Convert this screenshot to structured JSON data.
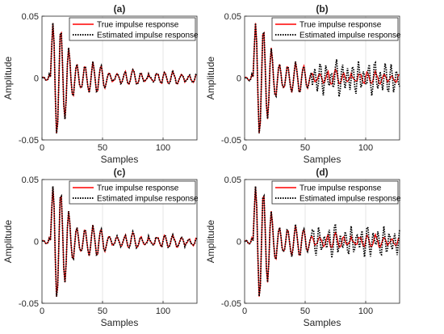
{
  "chart_data": [
    {
      "type": "line",
      "title": "(a)",
      "xlabel": "Samples",
      "ylabel": "Amplitude",
      "xlim": [
        0,
        128
      ],
      "ylim": [
        -0.05,
        0.05
      ],
      "xticks": [
        0,
        50,
        100
      ],
      "yticks": [
        -0.05,
        0,
        0.05
      ],
      "ytick_labels": [
        "-0.05",
        "0",
        "0.05"
      ],
      "grid": "x",
      "legend": "top-right",
      "mismatch": 0.02,
      "noise_seed": 1,
      "series": [
        {
          "name": "True impulse response",
          "color": "#ff0000",
          "style": "solid"
        },
        {
          "name": "Estimated impulse response",
          "color": "#000000",
          "style": "dotted"
        }
      ]
    },
    {
      "type": "line",
      "title": "(b)",
      "xlabel": "Samples",
      "ylabel": "Amplitude",
      "xlim": [
        0,
        128
      ],
      "ylim": [
        -0.05,
        0.05
      ],
      "xticks": [
        0,
        50,
        100
      ],
      "yticks": [
        -0.05,
        0,
        0.05
      ],
      "ytick_labels": [
        "-0.05",
        "0",
        "0.05"
      ],
      "grid": "x",
      "legend": "top-right",
      "mismatch": 0.35,
      "noise_seed": 2,
      "series": [
        {
          "name": "True impulse response",
          "color": "#ff0000",
          "style": "solid"
        },
        {
          "name": "Estimated impulse response",
          "color": "#000000",
          "style": "dotted"
        }
      ]
    },
    {
      "type": "line",
      "title": "(c)",
      "xlabel": "Samples",
      "ylabel": "Amplitude",
      "xlim": [
        0,
        128
      ],
      "ylim": [
        -0.05,
        0.05
      ],
      "xticks": [
        0,
        50,
        100
      ],
      "yticks": [
        -0.05,
        0,
        0.05
      ],
      "ytick_labels": [
        "-0.05",
        "0",
        "0.05"
      ],
      "grid": "x",
      "legend": "top-right",
      "mismatch": 0.03,
      "noise_seed": 3,
      "series": [
        {
          "name": "True impulse response",
          "color": "#ff0000",
          "style": "solid"
        },
        {
          "name": "Estimated impulse response",
          "color": "#000000",
          "style": "dotted"
        }
      ]
    },
    {
      "type": "line",
      "title": "(d)",
      "xlabel": "Samples",
      "ylabel": "Amplitude",
      "xlim": [
        0,
        128
      ],
      "ylim": [
        -0.05,
        0.05
      ],
      "xticks": [
        0,
        50,
        100
      ],
      "yticks": [
        -0.05,
        0,
        0.05
      ],
      "ytick_labels": [
        "-0.05",
        "0",
        "0.05"
      ],
      "grid": "x",
      "legend": "top-right",
      "mismatch": 0.3,
      "noise_seed": 4,
      "series": [
        {
          "name": "True impulse response",
          "color": "#ff0000",
          "style": "solid"
        },
        {
          "name": "Estimated impulse response",
          "color": "#000000",
          "style": "dotted"
        }
      ]
    }
  ]
}
